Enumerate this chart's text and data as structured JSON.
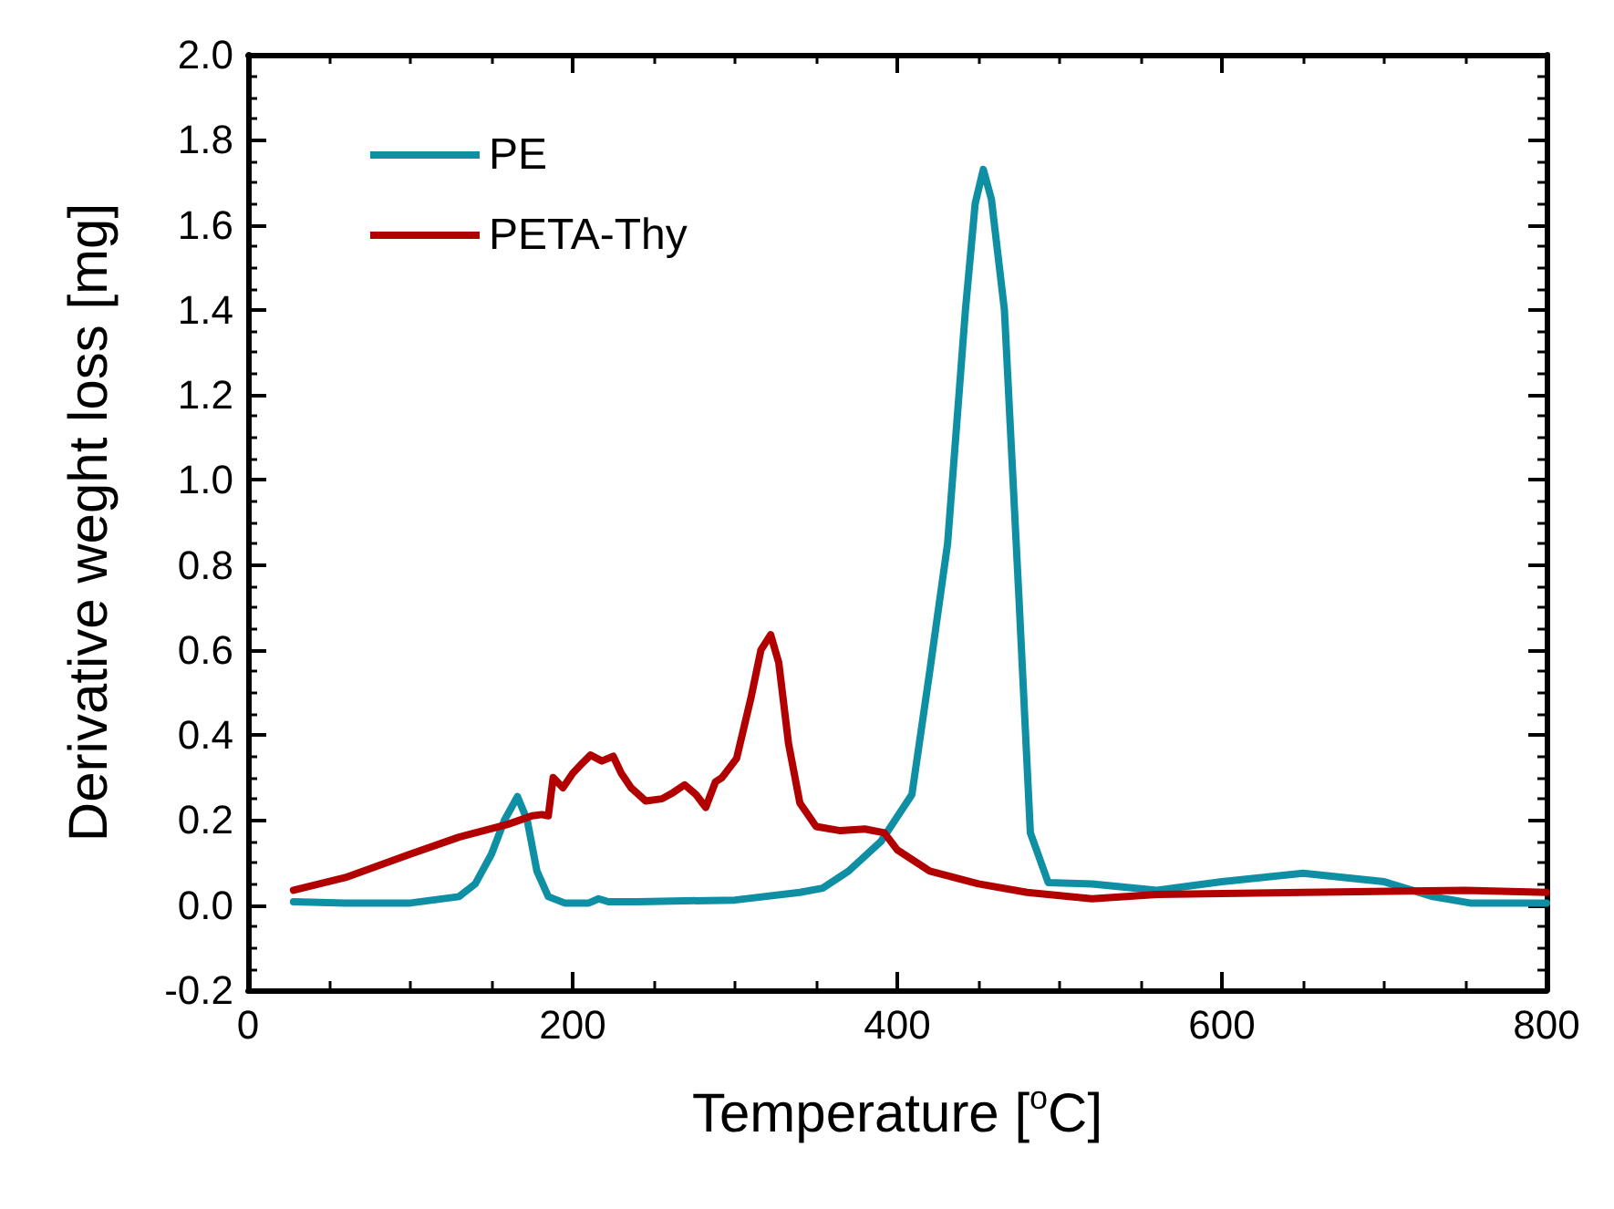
{
  "chart_data": {
    "type": "line",
    "xlabel": "Temperature [$^{o}$C]",
    "ylabel": "Derivative weght loss [mg]",
    "xlim": [
      0,
      800
    ],
    "xticks": [
      0,
      200,
      400,
      600,
      800
    ],
    "ylim": [
      -0.2,
      2.0
    ],
    "yticks": [
      -0.2,
      {
        "value": 0,
        "label": "0.0"
      },
      0.2,
      0.4,
      0.6,
      0.8,
      {
        "value": 1,
        "label": "1.0"
      },
      1.2,
      1.4,
      1.6,
      1.8,
      {
        "value": 2,
        "label": "2.0"
      }
    ],
    "legend": "top left",
    "grid": false,
    "marker": "none",
    "line_style": "solid",
    "series": [
      {
        "name": "PE",
        "color": "#0e8fa3",
        "x": [
          28,
          60,
          100,
          130,
          140,
          150,
          158,
          166,
          172,
          178,
          185,
          195,
          210,
          216,
          222,
          240,
          300,
          340,
          354,
          370,
          390,
          409,
          420,
          431,
          442,
          448,
          453,
          458,
          466,
          475,
          482,
          493,
          520,
          560,
          600,
          650,
          700,
          730,
          753,
          800
        ],
        "values": [
          0.008,
          0.005,
          0.005,
          0.02,
          0.05,
          0.12,
          0.2,
          0.255,
          0.2,
          0.08,
          0.02,
          0.005,
          0.005,
          0.015,
          0.008,
          0.008,
          0.012,
          0.03,
          0.04,
          0.08,
          0.15,
          0.26,
          0.55,
          0.85,
          1.4,
          1.65,
          1.73,
          1.66,
          1.4,
          0.72,
          0.17,
          0.053,
          0.05,
          0.035,
          0.055,
          0.075,
          0.055,
          0.02,
          0.005,
          0.005
        ]
      },
      {
        "name": "PETA-Thy",
        "color": "#b20000",
        "x": [
          28,
          60,
          100,
          130,
          160,
          175,
          181,
          185,
          188,
          194,
          200,
          205,
          211,
          218,
          225,
          230,
          236,
          245,
          255,
          262,
          269,
          276,
          282,
          288,
          292,
          301,
          310,
          316,
          322,
          327,
          333,
          340,
          350,
          365,
          380,
          392,
          400,
          420,
          450,
          480,
          520,
          560,
          650,
          750,
          800
        ],
        "values": [
          0.035,
          0.065,
          0.12,
          0.16,
          0.19,
          0.21,
          0.213,
          0.21,
          0.3,
          0.276,
          0.31,
          0.33,
          0.353,
          0.339,
          0.35,
          0.31,
          0.276,
          0.245,
          0.25,
          0.265,
          0.283,
          0.26,
          0.23,
          0.29,
          0.3,
          0.345,
          0.49,
          0.6,
          0.636,
          0.57,
          0.38,
          0.24,
          0.185,
          0.175,
          0.179,
          0.17,
          0.13,
          0.08,
          0.05,
          0.03,
          0.015,
          0.025,
          0.03,
          0.035,
          0.03
        ]
      }
    ]
  }
}
